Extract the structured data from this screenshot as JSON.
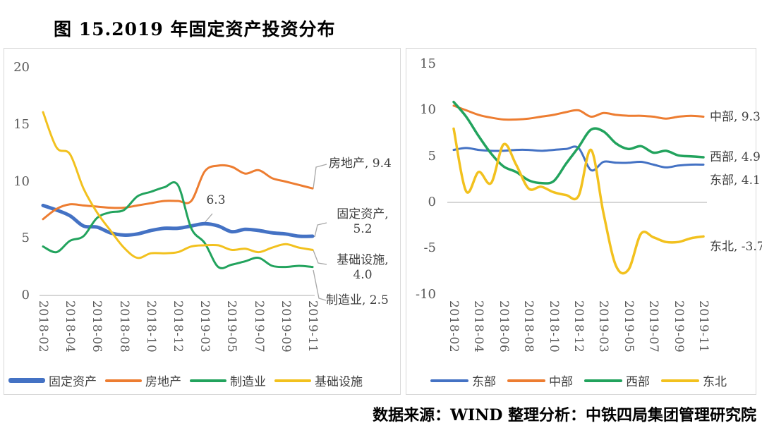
{
  "title": "图 15.2019 年固定资产投资分布",
  "footer": "数据来源：WIND 整理分析：中铁四局集团管理研究院",
  "colors": {
    "blue": "#4472C4",
    "orange": "#ED7D31",
    "green": "#22A35D",
    "yellow": "#F2C11E",
    "axis_text": "#595959",
    "baseline": "#c9c9c9",
    "leader": "#a6a6a6"
  },
  "chart_data": [
    {
      "id": "left",
      "type": "line",
      "title": "",
      "ylim": [
        0,
        20
      ],
      "y_ticks": [
        0,
        5,
        10,
        15,
        20
      ],
      "x_tick_labels": [
        "2018-02",
        "2018-04",
        "2018-06",
        "2018-08",
        "2018-10",
        "2018-12",
        "2019-03",
        "2019-05",
        "2019-07",
        "2019-09",
        "2019-11"
      ],
      "categories": [
        "2018-02",
        "2018-03",
        "2018-04",
        "2018-05",
        "2018-06",
        "2018-07",
        "2018-08",
        "2018-09",
        "2018-10",
        "2018-11",
        "2018-12",
        "2019-02",
        "2019-03",
        "2019-04",
        "2019-05",
        "2019-06",
        "2019-07",
        "2019-08",
        "2019-09",
        "2019-10",
        "2019-11"
      ],
      "series": [
        {
          "name": "固定资产",
          "color_key": "blue",
          "line_width": 5,
          "values": [
            7.9,
            7.5,
            7.0,
            6.1,
            6.0,
            5.5,
            5.3,
            5.4,
            5.7,
            5.9,
            5.9,
            6.1,
            6.3,
            6.1,
            5.6,
            5.8,
            5.7,
            5.5,
            5.4,
            5.2,
            5.2
          ]
        },
        {
          "name": "房地产",
          "color_key": "orange",
          "line_width": 3,
          "values": [
            6.7,
            7.6,
            8.0,
            7.9,
            7.8,
            7.7,
            7.7,
            7.9,
            8.1,
            8.3,
            8.3,
            8.3,
            10.9,
            11.4,
            11.3,
            10.7,
            11.0,
            10.3,
            10.0,
            9.7,
            9.4
          ]
        },
        {
          "name": "制造业",
          "color_key": "green",
          "line_width": 3,
          "values": [
            4.3,
            3.8,
            4.8,
            5.2,
            6.8,
            7.3,
            7.5,
            8.7,
            9.1,
            9.5,
            9.7,
            5.9,
            4.6,
            2.5,
            2.7,
            3.0,
            3.3,
            2.6,
            2.5,
            2.6,
            2.5
          ]
        },
        {
          "name": "基础设施",
          "color_key": "yellow",
          "line_width": 3,
          "values": [
            16.1,
            13.0,
            12.4,
            9.4,
            7.3,
            5.7,
            4.2,
            3.3,
            3.7,
            3.7,
            3.8,
            4.3,
            4.4,
            4.4,
            4.0,
            4.1,
            3.8,
            4.2,
            4.5,
            4.2,
            4.0
          ]
        }
      ],
      "annotations": [
        {
          "text": "6.3"
        },
        {
          "text": "房地产, 9.4"
        },
        {
          "text": "固定资产, 5.2"
        },
        {
          "text": "基础设施, 4.0"
        },
        {
          "text": "制造业, 2.5"
        }
      ],
      "legend": [
        "固定资产",
        "房地产",
        "制造业",
        "基础设施"
      ]
    },
    {
      "id": "right",
      "type": "line",
      "title": "",
      "ylim": [
        -10,
        15
      ],
      "y_ticks": [
        -10,
        -5,
        0,
        5,
        10,
        15
      ],
      "x_tick_labels": [
        "2018-02",
        "2018-04",
        "2018-06",
        "2018-08",
        "2018-10",
        "2018-12",
        "2019-03",
        "2019-05",
        "2019-07",
        "2019-09",
        "2019-11"
      ],
      "categories": [
        "2018-02",
        "2018-03",
        "2018-04",
        "2018-05",
        "2018-06",
        "2018-07",
        "2018-08",
        "2018-09",
        "2018-10",
        "2018-11",
        "2018-12",
        "2019-02",
        "2019-03",
        "2019-04",
        "2019-05",
        "2019-06",
        "2019-07",
        "2019-08",
        "2019-09",
        "2019-10",
        "2019-11"
      ],
      "series": [
        {
          "name": "东部",
          "color_key": "blue",
          "line_width": 3,
          "values": [
            5.7,
            5.9,
            5.7,
            5.6,
            5.6,
            5.7,
            5.7,
            5.6,
            5.7,
            5.8,
            5.9,
            3.5,
            4.4,
            4.3,
            4.3,
            4.4,
            4.1,
            3.8,
            4.0,
            4.1,
            4.1
          ]
        },
        {
          "name": "中部",
          "color_key": "orange",
          "line_width": 3,
          "values": [
            10.5,
            10.0,
            9.5,
            9.2,
            9.0,
            9.0,
            9.1,
            9.3,
            9.5,
            9.8,
            10.0,
            9.3,
            9.7,
            9.5,
            9.4,
            9.4,
            9.3,
            9.1,
            9.3,
            9.4,
            9.3
          ]
        },
        {
          "name": "西部",
          "color_key": "green",
          "line_width": 3.5,
          "values": [
            10.9,
            9.3,
            7.2,
            5.3,
            3.9,
            3.3,
            2.4,
            2.1,
            2.3,
            4.2,
            6.0,
            7.9,
            7.7,
            6.4,
            5.8,
            6.1,
            5.4,
            5.6,
            5.1,
            5.0,
            4.9
          ]
        },
        {
          "name": "东北",
          "color_key": "yellow",
          "line_width": 3.5,
          "values": [
            8.0,
            1.2,
            3.3,
            2.1,
            6.3,
            4.1,
            1.5,
            1.7,
            1.1,
            0.8,
            0.7,
            5.7,
            -1.2,
            -6.9,
            -7.3,
            -3.4,
            -3.8,
            -4.3,
            -4.3,
            -3.9,
            -3.7
          ]
        }
      ],
      "annotations": [
        {
          "text": "中部, 9.3"
        },
        {
          "text": "西部, 4.9"
        },
        {
          "text": "东部, 4.1"
        },
        {
          "text": "东北, -3.7"
        }
      ],
      "legend": [
        "东部",
        "中部",
        "西部",
        "东北"
      ]
    }
  ]
}
